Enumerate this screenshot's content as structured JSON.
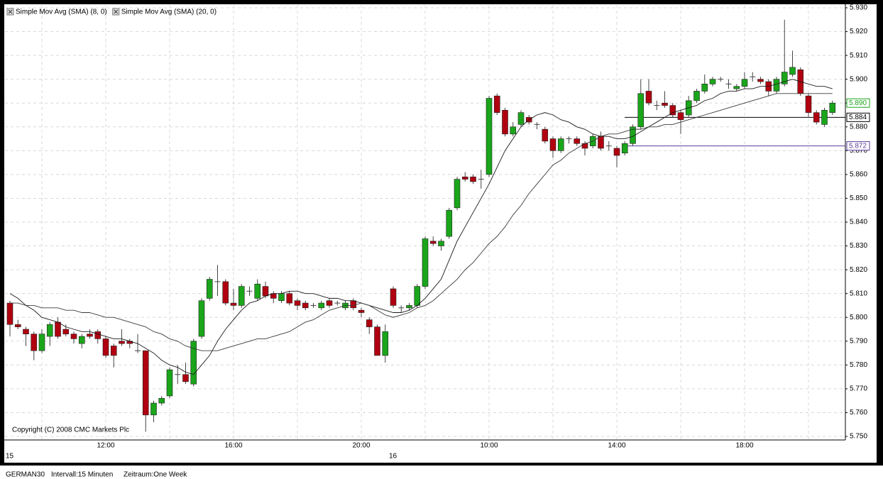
{
  "chart_data": {
    "type": "candlestick",
    "categories": [
      "15",
      null,
      null,
      null,
      null,
      null,
      null,
      null,
      null,
      null,
      null,
      null,
      "12:00",
      null,
      null,
      null,
      null,
      null,
      null,
      null,
      null,
      null,
      null,
      null,
      null,
      null,
      null,
      null,
      "16:00",
      null,
      null,
      null,
      null,
      null,
      null,
      null,
      null,
      null,
      null,
      null,
      null,
      null,
      null,
      null,
      "20:00",
      null,
      null,
      null,
      "16",
      null,
      null,
      null,
      null,
      null,
      null,
      null,
      null,
      null,
      null,
      null,
      "10:00",
      null,
      null,
      null,
      null,
      null,
      null,
      null,
      null,
      null,
      null,
      null,
      null,
      null,
      null,
      null,
      "14:00",
      null,
      null,
      null,
      null,
      null,
      null,
      null,
      null,
      null,
      null,
      null,
      null,
      null,
      null,
      null,
      "18:00",
      null,
      null,
      null,
      null,
      null,
      null,
      null,
      null,
      null,
      null,
      null
    ],
    "open": [
      5.806,
      5.797,
      5.795,
      5.793,
      5.786,
      5.792,
      5.798,
      5.795,
      5.793,
      5.789,
      5.793,
      5.794,
      5.791,
      5.788,
      5.79,
      5.79,
      5.786,
      5.786,
      5.759,
      5.764,
      5.767,
      5.776,
      5.776,
      5.772,
      5.792,
      5.808,
      5.815,
      5.815,
      5.806,
      5.805,
      5.811,
      5.808,
      5.813,
      5.81,
      5.807,
      5.81,
      5.807,
      5.806,
      5.805,
      5.804,
      5.807,
      5.806,
      5.804,
      5.807,
      5.803,
      5.799,
      5.796,
      5.784,
      5.812,
      5.804,
      5.804,
      5.805,
      5.813,
      5.832,
      5.83,
      5.834,
      5.846,
      5.859,
      5.859,
      5.858,
      5.86,
      5.893,
      5.887,
      5.877,
      5.881,
      5.884,
      5.881,
      5.879,
      5.875,
      5.87,
      5.875,
      5.875,
      5.873,
      5.872,
      5.876,
      5.872,
      5.871,
      5.869,
      5.873,
      5.88,
      5.895,
      5.889,
      5.89,
      5.889,
      5.886,
      5.885,
      5.891,
      5.895,
      5.898,
      5.9,
      5.898,
      5.896,
      5.897,
      5.901,
      5.9,
      5.899,
      5.895,
      5.898,
      5.902,
      5.904,
      5.893,
      5.886,
      5.881,
      5.886
    ],
    "high": [
      5.807,
      5.799,
      5.796,
      5.794,
      5.795,
      5.798,
      5.8,
      5.797,
      5.794,
      5.793,
      5.795,
      5.795,
      5.792,
      5.789,
      5.795,
      5.791,
      5.793,
      5.786,
      5.765,
      5.767,
      5.779,
      5.78,
      5.781,
      5.791,
      5.808,
      5.817,
      5.822,
      5.816,
      5.812,
      5.814,
      5.813,
      5.816,
      5.815,
      5.811,
      5.811,
      5.811,
      5.808,
      5.807,
      5.806,
      5.807,
      5.808,
      5.807,
      5.807,
      5.808,
      5.804,
      5.8,
      5.797,
      5.797,
      5.813,
      5.805,
      5.806,
      5.814,
      5.834,
      5.834,
      5.833,
      5.846,
      5.859,
      5.861,
      5.86,
      5.862,
      5.893,
      5.894,
      5.888,
      5.882,
      5.887,
      5.885,
      5.882,
      5.88,
      5.876,
      5.876,
      5.876,
      5.876,
      5.874,
      5.877,
      5.878,
      5.874,
      5.872,
      5.874,
      5.881,
      5.9,
      5.9,
      5.891,
      5.895,
      5.89,
      5.887,
      5.893,
      5.896,
      5.902,
      5.901,
      5.901,
      5.9,
      5.898,
      5.903,
      5.903,
      5.901,
      5.9,
      5.901,
      5.925,
      5.912,
      5.905,
      5.894,
      5.887,
      5.888,
      5.891
    ],
    "low": [
      5.792,
      5.795,
      5.788,
      5.782,
      5.785,
      5.788,
      5.791,
      5.792,
      5.789,
      5.787,
      5.791,
      5.789,
      5.783,
      5.779,
      5.788,
      5.787,
      5.785,
      5.752,
      5.756,
      5.763,
      5.766,
      5.772,
      5.772,
      5.771,
      5.791,
      5.807,
      5.809,
      5.805,
      5.803,
      5.804,
      5.809,
      5.807,
      5.808,
      5.806,
      5.806,
      5.805,
      5.803,
      5.803,
      5.804,
      5.803,
      5.804,
      5.805,
      5.803,
      5.803,
      5.8,
      5.793,
      5.784,
      5.781,
      5.804,
      5.802,
      5.803,
      5.804,
      5.812,
      5.83,
      5.828,
      5.833,
      5.845,
      5.857,
      5.856,
      5.854,
      5.859,
      5.885,
      5.876,
      5.876,
      5.88,
      5.881,
      5.879,
      5.873,
      5.867,
      5.869,
      5.873,
      5.872,
      5.868,
      5.871,
      5.87,
      5.87,
      5.863,
      5.868,
      5.872,
      5.879,
      5.889,
      5.887,
      5.888,
      5.884,
      5.877,
      5.884,
      5.89,
      5.894,
      5.897,
      5.899,
      5.896,
      5.895,
      5.896,
      5.899,
      5.898,
      5.893,
      5.894,
      5.897,
      5.901,
      5.893,
      5.884,
      5.881,
      5.88,
      5.885
    ],
    "close": [
      5.797,
      5.796,
      5.793,
      5.786,
      5.793,
      5.797,
      5.792,
      5.793,
      5.791,
      5.792,
      5.792,
      5.791,
      5.784,
      5.784,
      5.789,
      5.789,
      5.786,
      5.759,
      5.764,
      5.766,
      5.778,
      5.776,
      5.773,
      5.79,
      5.807,
      5.816,
      5.815,
      5.806,
      5.805,
      5.813,
      5.811,
      5.814,
      5.809,
      5.808,
      5.81,
      5.806,
      5.805,
      5.804,
      5.805,
      5.806,
      5.805,
      5.806,
      5.806,
      5.804,
      5.802,
      5.796,
      5.784,
      5.794,
      5.805,
      5.804,
      5.805,
      5.813,
      5.833,
      5.831,
      5.832,
      5.845,
      5.858,
      5.858,
      5.857,
      5.858,
      5.892,
      5.886,
      5.877,
      5.88,
      5.886,
      5.882,
      5.881,
      5.874,
      5.87,
      5.875,
      5.875,
      5.873,
      5.871,
      5.876,
      5.871,
      5.872,
      5.868,
      5.873,
      5.88,
      5.894,
      5.89,
      5.889,
      5.889,
      5.885,
      5.883,
      5.891,
      5.895,
      5.898,
      5.9,
      5.9,
      5.898,
      5.897,
      5.9,
      5.901,
      5.899,
      5.895,
      5.9,
      5.903,
      5.905,
      5.894,
      5.886,
      5.882,
      5.887,
      5.89
    ],
    "up_color": "#1aa51a",
    "down_color": "#b00010",
    "series": [
      {
        "name": "Simple Mov Avg (SMA) (8, 0)",
        "color": "#1a1a1a",
        "values": [
          5.81,
          5.808,
          5.805,
          5.803,
          5.8,
          5.799,
          5.798,
          5.796,
          5.795,
          5.794,
          5.794,
          5.793,
          5.792,
          5.791,
          5.791,
          5.79,
          5.789,
          5.787,
          5.785,
          5.782,
          5.78,
          5.779,
          5.777,
          5.776,
          5.78,
          5.784,
          5.79,
          5.795,
          5.799,
          5.803,
          5.806,
          5.807,
          5.809,
          5.81,
          5.81,
          5.811,
          5.811,
          5.81,
          5.81,
          5.809,
          5.808,
          5.808,
          5.807,
          5.807,
          5.806,
          5.805,
          5.804,
          5.803,
          5.802,
          5.802,
          5.803,
          5.805,
          5.808,
          5.812,
          5.816,
          5.824,
          5.832,
          5.838,
          5.844,
          5.85,
          5.856,
          5.863,
          5.87,
          5.875,
          5.88,
          5.883,
          5.885,
          5.886,
          5.885,
          5.883,
          5.882,
          5.88,
          5.879,
          5.877,
          5.876,
          5.876,
          5.875,
          5.875,
          5.876,
          5.878,
          5.88,
          5.882,
          5.884,
          5.886,
          5.887,
          5.888,
          5.889,
          5.891,
          5.892,
          5.894,
          5.895,
          5.895,
          5.896,
          5.896,
          5.897,
          5.897,
          5.898,
          5.899,
          5.9,
          5.899,
          5.898,
          5.897,
          5.897,
          5.896
        ]
      },
      {
        "name": "Simple Mov Avg (SMA) (20, 0)",
        "color": "#3a3a3a",
        "values": [
          5.806,
          5.806,
          5.805,
          5.805,
          5.804,
          5.804,
          5.804,
          5.803,
          5.803,
          5.802,
          5.802,
          5.801,
          5.8,
          5.8,
          5.799,
          5.798,
          5.797,
          5.796,
          5.794,
          5.793,
          5.791,
          5.79,
          5.788,
          5.787,
          5.786,
          5.786,
          5.786,
          5.787,
          5.788,
          5.789,
          5.79,
          5.791,
          5.791,
          5.792,
          5.793,
          5.794,
          5.796,
          5.798,
          5.799,
          5.801,
          5.803,
          5.804,
          5.805,
          5.805,
          5.806,
          5.805,
          5.803,
          5.801,
          5.8,
          5.801,
          5.802,
          5.804,
          5.805,
          5.807,
          5.81,
          5.813,
          5.816,
          5.82,
          5.823,
          5.827,
          5.831,
          5.834,
          5.838,
          5.843,
          5.847,
          5.852,
          5.856,
          5.86,
          5.864,
          5.866,
          5.869,
          5.871,
          5.873,
          5.874,
          5.876,
          5.877,
          5.877,
          5.878,
          5.879,
          5.879,
          5.88,
          5.88,
          5.881,
          5.881,
          5.882,
          5.883,
          5.884,
          5.885,
          5.886,
          5.887,
          5.888,
          5.889,
          5.89,
          5.891,
          5.892,
          5.893,
          5.894,
          5.894,
          5.894,
          5.894,
          5.894,
          5.894,
          5.894,
          5.894
        ]
      }
    ],
    "ylim": [
      5.75,
      5.93
    ],
    "yticks": [
      {
        "value": 5.75,
        "label": "5.750"
      },
      {
        "value": 5.76,
        "label": "5.760"
      },
      {
        "value": 5.77,
        "label": "5.770"
      },
      {
        "value": 5.78,
        "label": "5.780"
      },
      {
        "value": 5.79,
        "label": "5.790"
      },
      {
        "value": 5.8,
        "label": "5.800"
      },
      {
        "value": 5.81,
        "label": "5.810"
      },
      {
        "value": 5.82,
        "label": "5.820"
      },
      {
        "value": 5.83,
        "label": "5.830"
      },
      {
        "value": 5.84,
        "label": "5.840"
      },
      {
        "value": 5.85,
        "label": "5.850"
      },
      {
        "value": 5.86,
        "label": "5.860"
      },
      {
        "value": 5.87,
        "label": "5.870"
      },
      {
        "value": 5.88,
        "label": "5.880"
      },
      {
        "value": 5.89,
        "label": "5.890"
      },
      {
        "value": 5.9,
        "label": "5.900"
      },
      {
        "value": 5.91,
        "label": "5.910"
      },
      {
        "value": 5.92,
        "label": "5.920"
      },
      {
        "value": 5.93,
        "label": "5.930"
      }
    ],
    "grid": true,
    "lines": [
      {
        "value": 5.884,
        "color": "#000000"
      },
      {
        "value": 5.872,
        "color": "#5a3c9c"
      }
    ],
    "last_price": {
      "value": 5.89,
      "label": "5.890",
      "color": "#1aa51a"
    },
    "annotation": "Copyright (C) 2008 CMC Markets Plc"
  },
  "footer": {
    "symbol": "GERMAN30",
    "interval": "Intervall:15 Minuten",
    "period": "Zeitraum:One Week"
  }
}
